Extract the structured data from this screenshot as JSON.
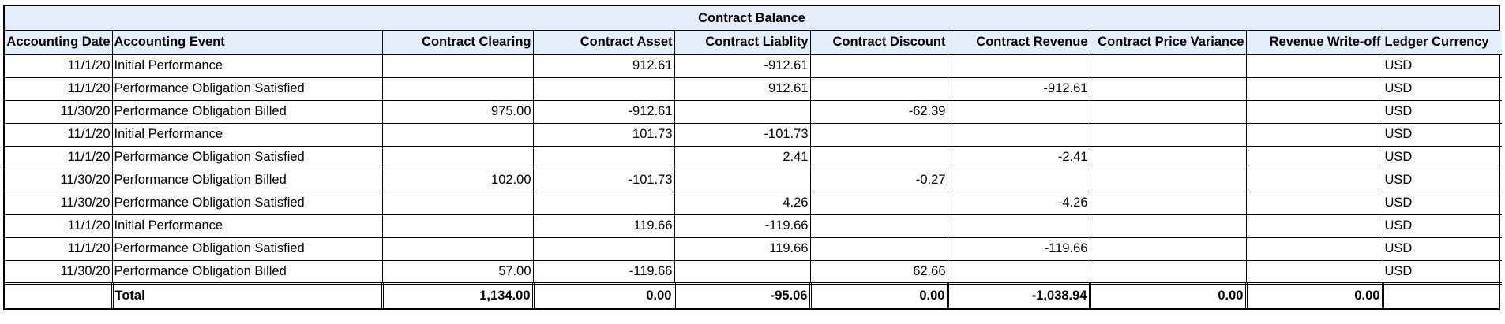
{
  "title": "Contract Balance",
  "headers": [
    "Accounting Date",
    "Accounting Event",
    "Contract Clearing",
    "Contract Asset",
    "Contract Liablity",
    "Contract Discount",
    "Contract Revenue",
    "Contract Price Variance",
    "Revenue Write-off",
    "Ledger Currency"
  ],
  "rows": [
    [
      "11/1/20",
      "Initial Performance",
      "",
      "912.61",
      "-912.61",
      "",
      "",
      "",
      "",
      "USD"
    ],
    [
      "11/1/20",
      "Performance Obligation Satisfied",
      "",
      "",
      "912.61",
      "",
      "-912.61",
      "",
      "",
      "USD"
    ],
    [
      "11/30/20",
      "Performance Obligation Billed",
      "975.00",
      "-912.61",
      "",
      "-62.39",
      "",
      "",
      "",
      "USD"
    ],
    [
      "11/1/20",
      "Initial Performance",
      "",
      "101.73",
      "-101.73",
      "",
      "",
      "",
      "",
      "USD"
    ],
    [
      "11/1/20",
      "Performance Obligation Satisfied",
      "",
      "",
      "2.41",
      "",
      "-2.41",
      "",
      "",
      "USD"
    ],
    [
      "11/30/20",
      "Performance Obligation Billed",
      "102.00",
      "-101.73",
      "",
      "-0.27",
      "",
      "",
      "",
      "USD"
    ],
    [
      "11/30/20",
      "Performance Obligation Satisfied",
      "",
      "",
      "4.26",
      "",
      "-4.26",
      "",
      "",
      "USD"
    ],
    [
      "11/1/20",
      "Initial Performance",
      "",
      "119.66",
      "-119.66",
      "",
      "",
      "",
      "",
      "USD"
    ],
    [
      "11/1/20",
      "Performance Obligation Satisfied",
      "",
      "",
      "119.66",
      "",
      "-119.66",
      "",
      "",
      "USD"
    ],
    [
      "11/30/20",
      "Performance Obligation Billed",
      "57.00",
      "-119.66",
      "",
      "62.66",
      "",
      "",
      "",
      "USD"
    ]
  ],
  "total": [
    "",
    "Total",
    "1,134.00",
    "0.00",
    "-95.06",
    "0.00",
    "-1,038.94",
    "0.00",
    "0.00",
    ""
  ],
  "colors": {
    "header_bg": "#e4effb",
    "grid": "#000000"
  }
}
